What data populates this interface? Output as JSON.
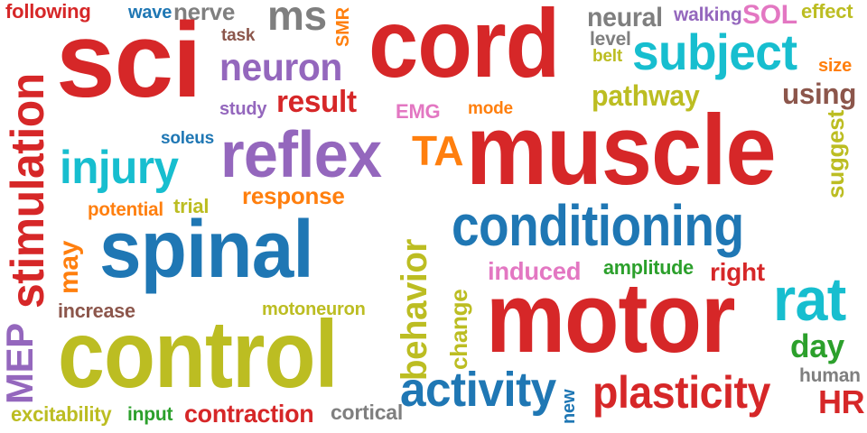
{
  "words": [
    {
      "text": "following",
      "color": "#d62728"
    },
    {
      "text": "wave",
      "color": "#1f77b4"
    },
    {
      "text": "nerve",
      "color": "#7f7f7f"
    },
    {
      "text": "ms",
      "color": "#7f7f7f"
    },
    {
      "text": "SMR",
      "color": "#ff7f0e"
    },
    {
      "text": "task",
      "color": "#8c564b"
    },
    {
      "text": "sci",
      "color": "#d62728"
    },
    {
      "text": "neuron",
      "color": "#9467bd"
    },
    {
      "text": "cord",
      "color": "#d62728"
    },
    {
      "text": "neural",
      "color": "#7f7f7f"
    },
    {
      "text": "walking",
      "color": "#9467bd"
    },
    {
      "text": "SOL",
      "color": "#e377c2"
    },
    {
      "text": "effect",
      "color": "#bcbd22"
    },
    {
      "text": "level",
      "color": "#7f7f7f"
    },
    {
      "text": "belt",
      "color": "#bcbd22"
    },
    {
      "text": "subject",
      "color": "#17becf"
    },
    {
      "text": "size",
      "color": "#ff7f0e"
    },
    {
      "text": "study",
      "color": "#9467bd"
    },
    {
      "text": "result",
      "color": "#d62728"
    },
    {
      "text": "pathway",
      "color": "#bcbd22"
    },
    {
      "text": "using",
      "color": "#8c564b"
    },
    {
      "text": "EMG",
      "color": "#e377c2"
    },
    {
      "text": "mode",
      "color": "#ff7f0e"
    },
    {
      "text": "stimulation",
      "color": "#d62728"
    },
    {
      "text": "muscle",
      "color": "#d62728"
    },
    {
      "text": "suggest",
      "color": "#bcbd22"
    },
    {
      "text": "soleus",
      "color": "#1f77b4"
    },
    {
      "text": "reflex",
      "color": "#9467bd"
    },
    {
      "text": "TA",
      "color": "#ff7f0e"
    },
    {
      "text": "injury",
      "color": "#17becf"
    },
    {
      "text": "response",
      "color": "#ff7f0e"
    },
    {
      "text": "potential",
      "color": "#ff7f0e"
    },
    {
      "text": "trial",
      "color": "#bcbd22"
    },
    {
      "text": "behavior",
      "color": "#bcbd22"
    },
    {
      "text": "conditioning",
      "color": "#1f77b4"
    },
    {
      "text": "spinal",
      "color": "#1f77b4"
    },
    {
      "text": "may",
      "color": "#ff7f0e"
    },
    {
      "text": "change",
      "color": "#bcbd22"
    },
    {
      "text": "induced",
      "color": "#e377c2"
    },
    {
      "text": "amplitude",
      "color": "#2ca02c"
    },
    {
      "text": "right",
      "color": "#d62728"
    },
    {
      "text": "rat",
      "color": "#17becf"
    },
    {
      "text": "increase",
      "color": "#8c564b"
    },
    {
      "text": "motoneuron",
      "color": "#bcbd22"
    },
    {
      "text": "motor",
      "color": "#d62728"
    },
    {
      "text": "MEP",
      "color": "#9467bd"
    },
    {
      "text": "control",
      "color": "#bcbd22"
    },
    {
      "text": "day",
      "color": "#2ca02c"
    },
    {
      "text": "human",
      "color": "#7f7f7f"
    },
    {
      "text": "activity",
      "color": "#1f77b4"
    },
    {
      "text": "new",
      "color": "#1f77b4"
    },
    {
      "text": "plasticity",
      "color": "#d62728"
    },
    {
      "text": "HR",
      "color": "#d62728"
    },
    {
      "text": "excitability",
      "color": "#bcbd22"
    },
    {
      "text": "input",
      "color": "#2ca02c"
    },
    {
      "text": "contraction",
      "color": "#d62728"
    },
    {
      "text": "cortical",
      "color": "#7f7f7f"
    }
  ]
}
